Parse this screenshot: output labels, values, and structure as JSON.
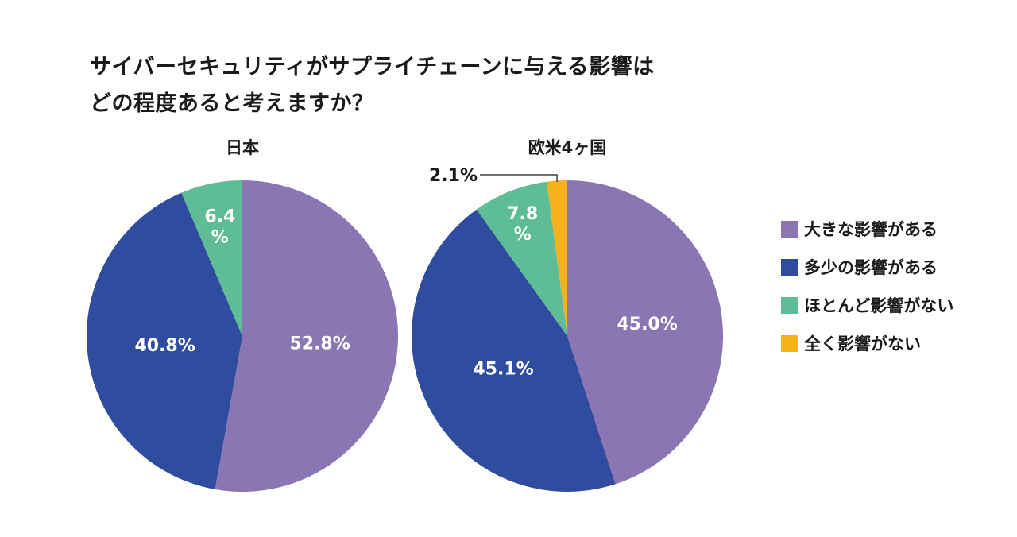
{
  "title": {
    "line1": "サイバーセキュリティがサプライチェーンに与える影響は",
    "line2": "どの程度あると考えますか？"
  },
  "chart_data": [
    {
      "type": "pie",
      "title": "日本",
      "labels": [
        "大きな影響がある",
        "多少の影響がある",
        "ほとんど影響がない"
      ],
      "values": [
        52.8,
        40.8,
        6.4
      ],
      "value_labels": [
        "52.8%",
        "40.8%",
        "6.4\n%"
      ],
      "colors": [
        "#8b76b4",
        "#304c9e",
        "#5ebd96"
      ]
    },
    {
      "type": "pie",
      "title": "欧米4ヶ国",
      "labels": [
        "大きな影響がある",
        "多少の影響がある",
        "ほとんど影響がない",
        "全く影響がない"
      ],
      "values": [
        45.0,
        45.1,
        7.8,
        2.1
      ],
      "value_labels": [
        "45.0%",
        "45.1%",
        "7.8\n%",
        "2.1%"
      ],
      "colors": [
        "#8b76b4",
        "#304c9e",
        "#5ebd96",
        "#f6b21d"
      ]
    }
  ],
  "legend": {
    "placement": "right",
    "items": [
      {
        "label": "大きな影響がある",
        "color": "#8b76b4"
      },
      {
        "label": "多少の影響がある",
        "color": "#304c9e"
      },
      {
        "label": "ほとんど影響がない",
        "color": "#5ebd96"
      },
      {
        "label": "全く影響がない",
        "color": "#f6b21d"
      }
    ]
  }
}
